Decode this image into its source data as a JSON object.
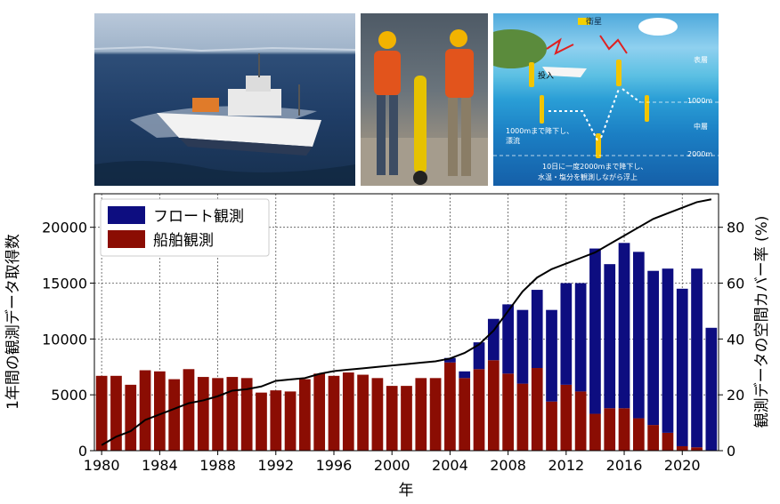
{
  "photos": {
    "ship": {
      "icon": "research-vessel-photo"
    },
    "crew": {
      "icon": "argo-float-deployment-photo"
    },
    "diagram": {
      "icon": "argo-float-cycle-diagram",
      "satellite_label": "衛星",
      "deploy_label": "投入",
      "surface_label": "表層",
      "middle_label": "中層",
      "depth_1000": "1000m",
      "depth_2000": "2000m",
      "drift_text_1": "1000mまで降下し、",
      "drift_text_2": "漂流",
      "profile_text_1": "10日に一度2000mまで降下し、",
      "profile_text_2": "水温・塩分を観測しながら浮上"
    }
  },
  "chart_data": {
    "type": "bar",
    "xlabel": "年",
    "ylabel": "1年間の観測データ取得数",
    "y2label": "観測データの空間カバー率 (%)",
    "ylim": [
      0,
      23000
    ],
    "y2lim": [
      0,
      92
    ],
    "yticks": [
      0,
      5000,
      10000,
      15000,
      20000
    ],
    "y2ticks": [
      0,
      20,
      40,
      60,
      80
    ],
    "xticks": [
      1980,
      1984,
      1988,
      1992,
      1996,
      2000,
      2004,
      2008,
      2012,
      2016,
      2020
    ],
    "grid": true,
    "legend_position": "top-left",
    "stacked": true,
    "colors": {
      "float": "#0d0d80",
      "ship": "#8b0d03",
      "line": "#000000"
    },
    "years": [
      1980,
      1981,
      1982,
      1983,
      1984,
      1985,
      1986,
      1987,
      1988,
      1989,
      1990,
      1991,
      1992,
      1993,
      1994,
      1995,
      1996,
      1997,
      1998,
      1999,
      2000,
      2001,
      2002,
      2003,
      2004,
      2005,
      2006,
      2007,
      2008,
      2009,
      2010,
      2011,
      2012,
      2013,
      2014,
      2015,
      2016,
      2017,
      2018,
      2019,
      2020,
      2021,
      2022
    ],
    "series": [
      {
        "name": "船舶観測",
        "values": [
          6700,
          6700,
          5900,
          7200,
          7100,
          6400,
          7300,
          6600,
          6500,
          6600,
          6500,
          5200,
          5400,
          5300,
          6400,
          6900,
          6700,
          7000,
          6800,
          6500,
          5800,
          5800,
          6500,
          6500,
          7900,
          6500,
          7300,
          8100,
          6900,
          6000,
          7400,
          4400,
          5900,
          5300,
          3300,
          3800,
          3800,
          2900,
          2300,
          1600,
          400,
          300,
          0
        ]
      },
      {
        "name": "フロート観測",
        "values": [
          0,
          0,
          0,
          0,
          0,
          0,
          0,
          0,
          0,
          0,
          0,
          0,
          0,
          0,
          0,
          0,
          0,
          0,
          0,
          0,
          0,
          0,
          0,
          0,
          400,
          600,
          2400,
          3700,
          6200,
          6600,
          7000,
          8200,
          9100,
          9700,
          14800,
          12900,
          14800,
          14900,
          13800,
          14700,
          14100,
          16000,
          11000
        ]
      }
    ],
    "coverage_line": {
      "name": "カバー率",
      "values": [
        2,
        5,
        7,
        11,
        13,
        15,
        17,
        18,
        19.5,
        21.5,
        22,
        23,
        25,
        25.5,
        26,
        27.5,
        28.5,
        29,
        29.5,
        30,
        30.5,
        31,
        31.5,
        32,
        33,
        35,
        38,
        43,
        50,
        57,
        62,
        65,
        67,
        69,
        71,
        74,
        77,
        80,
        83,
        85,
        87,
        89,
        90
      ]
    }
  }
}
